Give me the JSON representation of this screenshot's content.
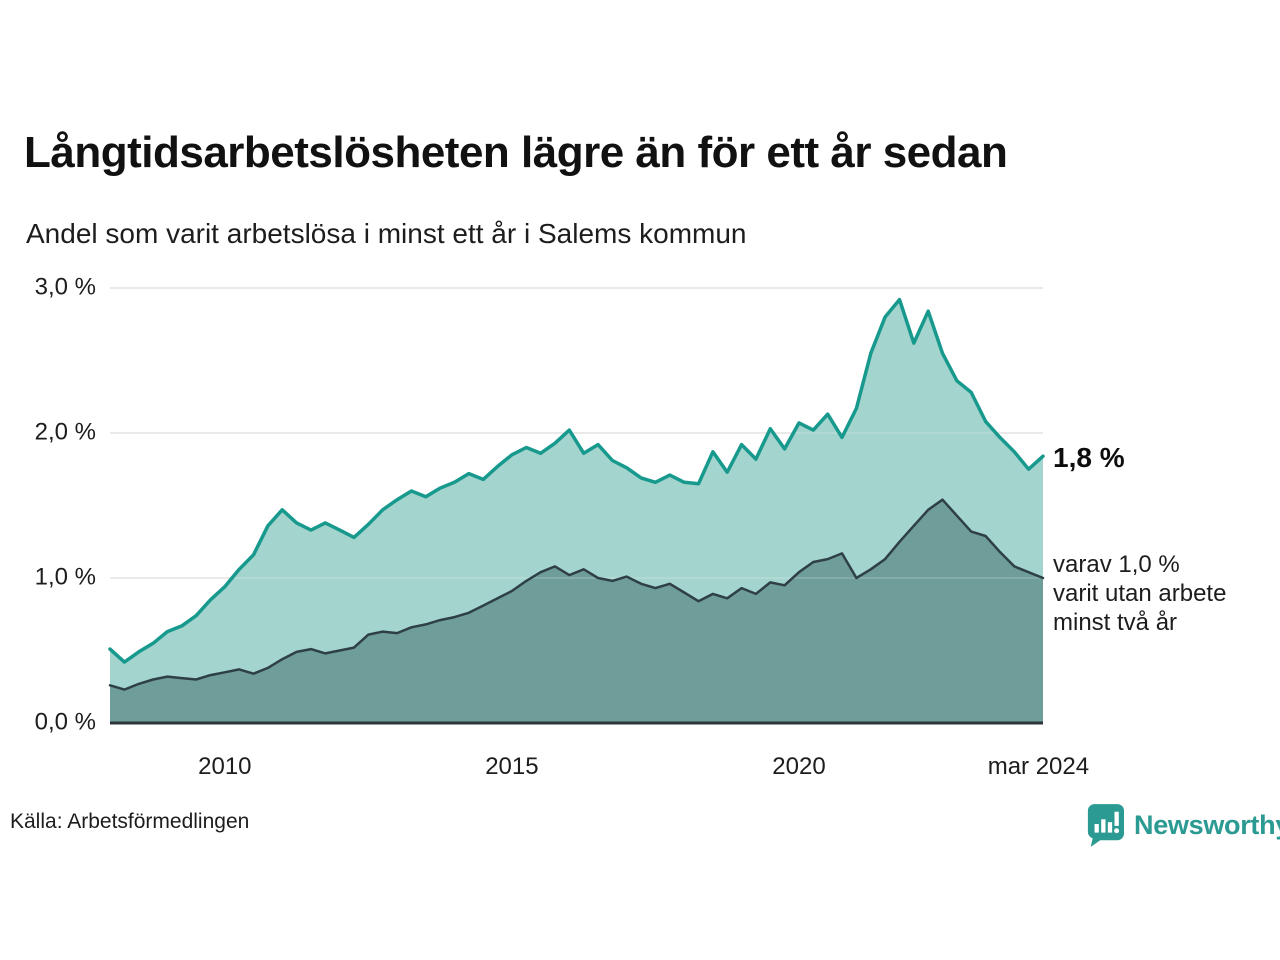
{
  "header": {
    "title": "Långtidsarbetslösheten lägre än för ett år sedan",
    "subtitle": "Andel som varit arbetslösa i minst ett år i Salems kommun"
  },
  "footer": {
    "source": "Källa: Arbetsförmedlingen",
    "brand": "Newsworthy"
  },
  "colors": {
    "brand_teal": "#2b9a92",
    "line_one_year": "#18998e",
    "fill_one_year": "#a3d4cd",
    "line_two_year": "#2e4046",
    "fill_two_year": "#6f9d99",
    "gridline": "#dcdcdc",
    "baseline": "#2b353a",
    "text": "#1d1d1d"
  },
  "chart_data": {
    "type": "area",
    "title": "Långtidsarbetslösheten lägre än för ett år sedan",
    "subtitle": "Andel som varit arbetslösa i minst ett år i Salems kommun",
    "xlabel": "",
    "ylabel": "",
    "x_unit": "decimal_year_quarterly",
    "xlim": [
      2008,
      2024.25
    ],
    "ylim": [
      0,
      3
    ],
    "grid": "horizontal",
    "legend": "none",
    "yticks": [
      {
        "value": 0,
        "label": "0,0 %"
      },
      {
        "value": 1,
        "label": "1,0 %"
      },
      {
        "value": 2,
        "label": "2,0 %"
      },
      {
        "value": 3,
        "label": "3,0 %"
      }
    ],
    "xticks": [
      {
        "value": 2010,
        "label": "2010"
      },
      {
        "value": 2015,
        "label": "2015"
      },
      {
        "value": 2020,
        "label": "2020"
      },
      {
        "value": 2024.17,
        "label": "mar 2024"
      }
    ],
    "x": [
      2008,
      2008.25,
      2008.5,
      2008.75,
      2009,
      2009.25,
      2009.5,
      2009.75,
      2010,
      2010.25,
      2010.5,
      2010.75,
      2011,
      2011.25,
      2011.5,
      2011.75,
      2012,
      2012.25,
      2012.5,
      2012.75,
      2013,
      2013.25,
      2013.5,
      2013.75,
      2014,
      2014.25,
      2014.5,
      2014.75,
      2015,
      2015.25,
      2015.5,
      2015.75,
      2016,
      2016.25,
      2016.5,
      2016.75,
      2017,
      2017.25,
      2017.5,
      2017.75,
      2018,
      2018.25,
      2018.5,
      2018.75,
      2019,
      2019.25,
      2019.5,
      2019.75,
      2020,
      2020.25,
      2020.5,
      2020.75,
      2021,
      2021.25,
      2021.5,
      2021.75,
      2022,
      2022.25,
      2022.5,
      2022.75,
      2023,
      2023.25,
      2023.5,
      2023.75,
      2024,
      2024.25
    ],
    "series": [
      {
        "name": "minst ett år",
        "color": "#18998e",
        "fill": "#a3d4cd",
        "stroke_width": 3.5,
        "values": [
          0.51,
          0.42,
          0.49,
          0.55,
          0.63,
          0.67,
          0.74,
          0.85,
          0.94,
          1.06,
          1.16,
          1.36,
          1.47,
          1.38,
          1.33,
          1.38,
          1.33,
          1.28,
          1.37,
          1.47,
          1.54,
          1.6,
          1.56,
          1.62,
          1.66,
          1.72,
          1.68,
          1.77,
          1.85,
          1.9,
          1.86,
          1.93,
          2.02,
          1.86,
          1.92,
          1.81,
          1.76,
          1.69,
          1.66,
          1.71,
          1.66,
          1.65,
          1.87,
          1.73,
          1.92,
          1.82,
          2.03,
          1.89,
          2.07,
          2.02,
          2.13,
          1.97,
          2.17,
          2.55,
          2.8,
          2.92,
          2.62,
          2.84,
          2.55,
          2.36,
          2.28,
          2.08,
          1.97,
          1.87,
          1.75,
          1.84
        ]
      },
      {
        "name": "minst två år",
        "color": "#2e4046",
        "fill": "#6f9d99",
        "stroke_width": 2.5,
        "values": [
          0.26,
          0.23,
          0.27,
          0.3,
          0.32,
          0.31,
          0.3,
          0.33,
          0.35,
          0.37,
          0.34,
          0.38,
          0.44,
          0.49,
          0.51,
          0.48,
          0.5,
          0.52,
          0.61,
          0.63,
          0.62,
          0.66,
          0.68,
          0.71,
          0.73,
          0.76,
          0.81,
          0.86,
          0.91,
          0.98,
          1.04,
          1.08,
          1.02,
          1.06,
          1.0,
          0.98,
          1.01,
          0.96,
          0.93,
          0.96,
          0.9,
          0.84,
          0.89,
          0.86,
          0.93,
          0.89,
          0.97,
          0.95,
          1.04,
          1.11,
          1.13,
          1.17,
          1.0,
          1.06,
          1.13,
          1.25,
          1.36,
          1.47,
          1.54,
          1.43,
          1.32,
          1.29,
          1.18,
          1.08,
          1.04,
          1.0
        ]
      }
    ],
    "annotations": {
      "latest_label": "1,8 %",
      "note_lines": [
        "varav 1,0 %",
        "varit utan arbete",
        "minst två år"
      ]
    }
  }
}
